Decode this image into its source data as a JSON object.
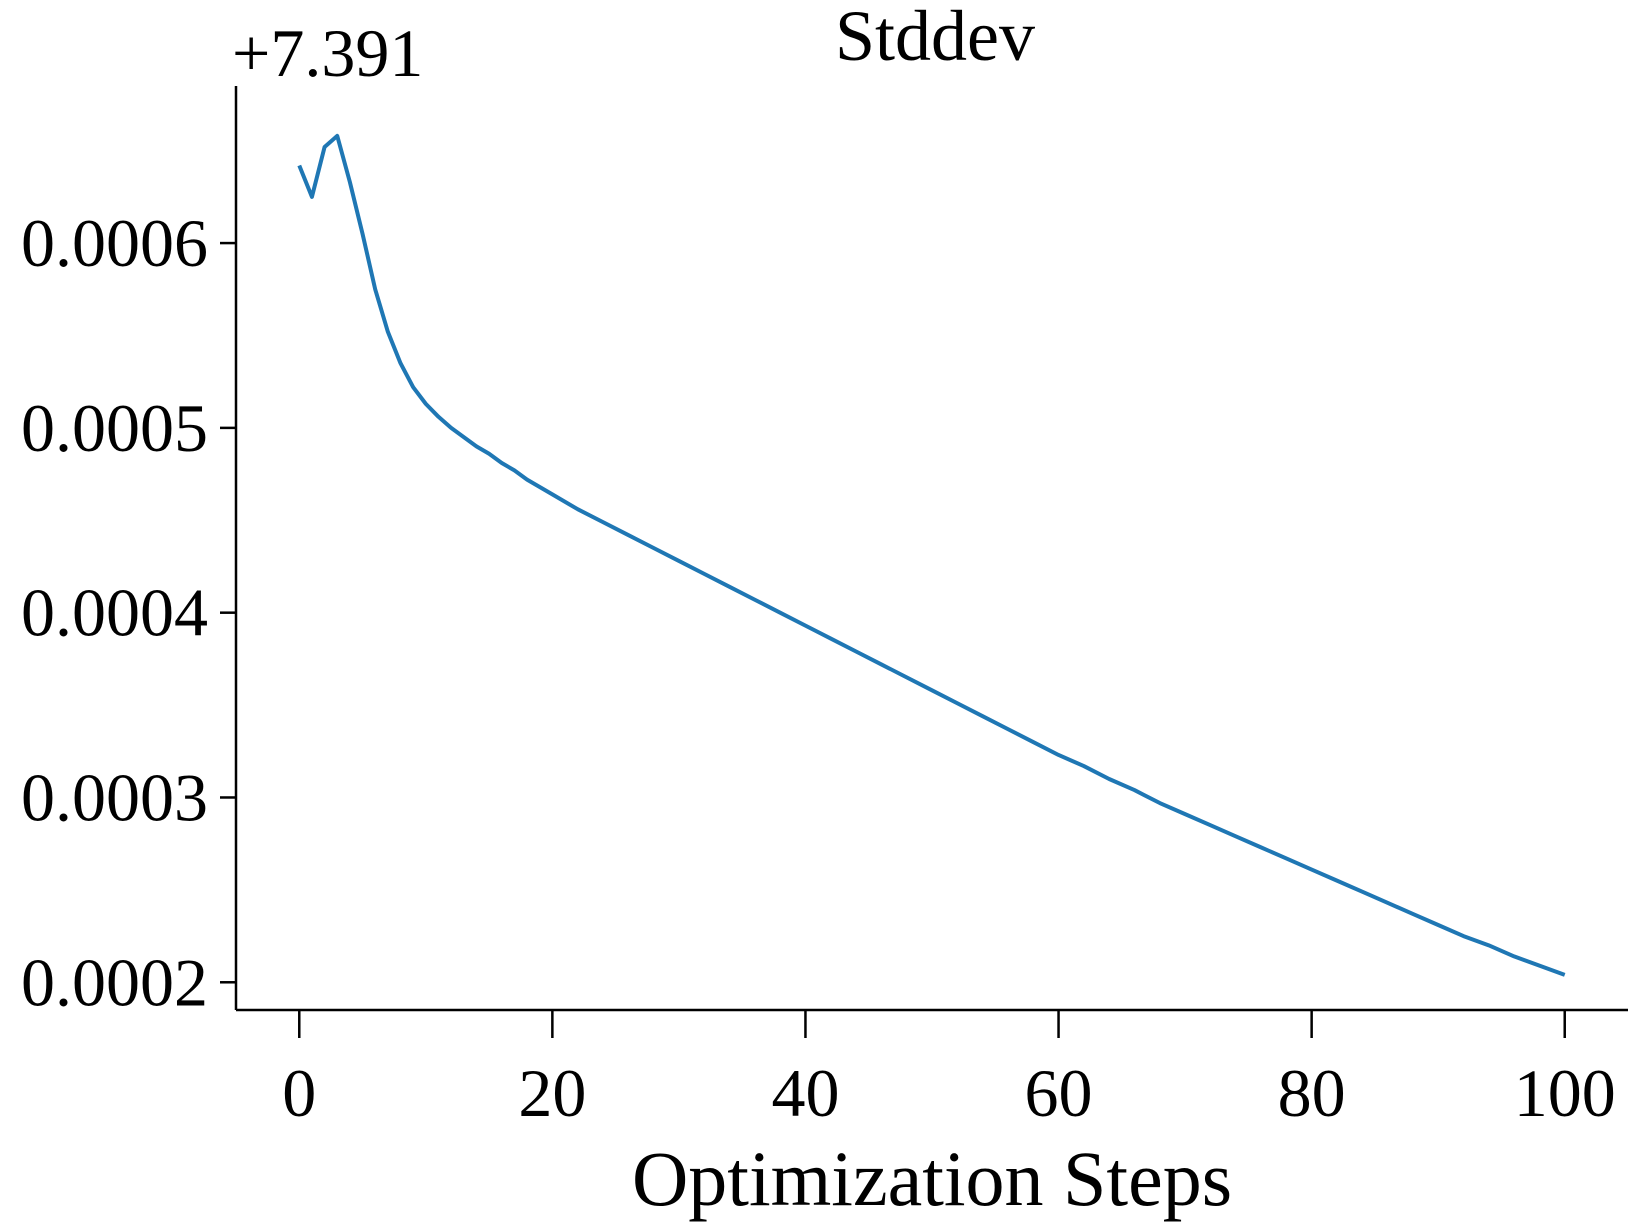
{
  "chart_data": {
    "type": "line",
    "title": "Stddev",
    "xlabel": "Optimization Steps",
    "ylabel": "",
    "y_offset_label": "+7.391",
    "xlim": [
      -5,
      105
    ],
    "ylim": [
      0.000185,
      0.000685
    ],
    "x_ticks": [
      0,
      20,
      40,
      60,
      80,
      100
    ],
    "x_tick_labels": [
      "0",
      "20",
      "40",
      "60",
      "80",
      "100"
    ],
    "y_ticks": [
      0.0002,
      0.0003,
      0.0004,
      0.0005,
      0.0006
    ],
    "y_tick_labels": [
      "0.0002",
      "0.0003",
      "0.0004",
      "0.0005",
      "0.0006"
    ],
    "grid": false,
    "spines": "left-bottom",
    "series": [
      {
        "color": "#1f77b4",
        "x": [
          0,
          1,
          2,
          3,
          4,
          5,
          6,
          7,
          8,
          9,
          10,
          11,
          12,
          13,
          14,
          15,
          16,
          17,
          18,
          19,
          20,
          22,
          24,
          26,
          28,
          30,
          32,
          34,
          36,
          38,
          40,
          42,
          44,
          46,
          48,
          50,
          52,
          54,
          56,
          58,
          60,
          62,
          64,
          66,
          68,
          70,
          72,
          74,
          76,
          78,
          80,
          82,
          84,
          86,
          88,
          90,
          92,
          94,
          96,
          98,
          100
        ],
        "values": [
          0.000642,
          0.000625,
          0.000652,
          0.000658,
          0.000633,
          0.000605,
          0.000575,
          0.000552,
          0.000535,
          0.000522,
          0.000513,
          0.000506,
          0.0005,
          0.000495,
          0.00049,
          0.000486,
          0.000481,
          0.000477,
          0.000472,
          0.000468,
          0.000464,
          0.000456,
          0.000449,
          0.000442,
          0.000435,
          0.000428,
          0.000421,
          0.000414,
          0.000407,
          0.0004,
          0.000393,
          0.000386,
          0.000379,
          0.000372,
          0.000365,
          0.000358,
          0.000351,
          0.000344,
          0.000337,
          0.00033,
          0.000323,
          0.000317,
          0.00031,
          0.000304,
          0.000297,
          0.000291,
          0.000285,
          0.000279,
          0.000273,
          0.000267,
          0.000261,
          0.000255,
          0.000249,
          0.000243,
          0.000237,
          0.000231,
          0.000225,
          0.00022,
          0.000214,
          0.000209,
          0.000204
        ]
      }
    ]
  }
}
